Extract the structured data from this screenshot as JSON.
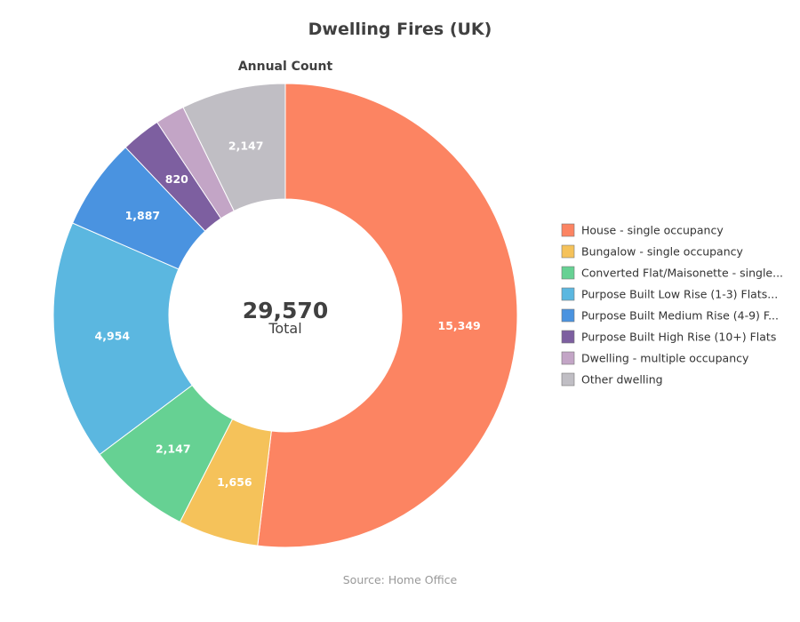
{
  "chart_data": {
    "type": "pie",
    "variant": "donut",
    "title": "Dwelling Fires (UK)",
    "subtitle": "Annual Count",
    "source": "Source: Home Office",
    "center": {
      "value": "29,570",
      "label": "Total"
    },
    "legend_placement": "right",
    "series": [
      {
        "name": "House - single occupancy",
        "value": 15349,
        "value_label": "15,349",
        "color": "#fc8462"
      },
      {
        "name": "Bungalow - single occupancy",
        "value": 1656,
        "value_label": "1,656",
        "color": "#f5c25a"
      },
      {
        "name": "Converted Flat/Maisonette - single...",
        "value": 2147,
        "value_label": "2,147",
        "color": "#66d193"
      },
      {
        "name": "Purpose Built Low Rise (1-3) Flats...",
        "value": 4954,
        "value_label": "4,954",
        "color": "#5bb7e0"
      },
      {
        "name": "Purpose Built Medium Rise (4-9) F...",
        "value": 1887,
        "value_label": "1,887",
        "color": "#4a93e0"
      },
      {
        "name": "Purpose Built High Rise (10+) Flats",
        "value": 820,
        "value_label": "820",
        "color": "#7d5fa0"
      },
      {
        "name": "Dwelling - multiple occupancy",
        "value": 610,
        "value_label": "",
        "color": "#c3a5c6"
      },
      {
        "name": "Other dwelling",
        "value": 2147,
        "value_label": "2,147",
        "color": "#c0bec4"
      }
    ]
  }
}
